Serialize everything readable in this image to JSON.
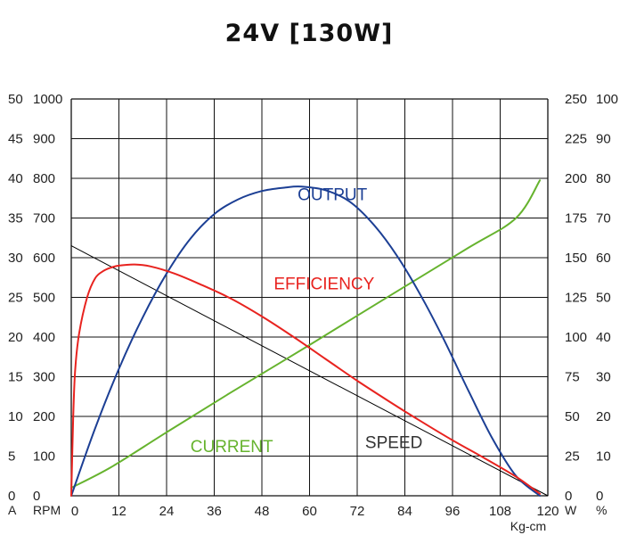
{
  "chart_data": {
    "type": "line",
    "title": "24V [130W]",
    "xlabel": "Kg-cm",
    "x_ticks": [
      "0",
      "12",
      "24",
      "36",
      "48",
      "60",
      "72",
      "84",
      "96",
      "108",
      "120"
    ],
    "xlim": [
      0,
      120
    ],
    "ylim_rpm": [
      0,
      1000
    ],
    "grid": true,
    "left_axes": {
      "current_unit": "A",
      "rpm_unit": "RPM",
      "current_ticks": [
        "0",
        "5",
        "10",
        "15",
        "20",
        "25",
        "30",
        "35",
        "40",
        "45",
        "50"
      ],
      "rpm_ticks": [
        "0",
        "100",
        "200",
        "300",
        "400",
        "500",
        "600",
        "700",
        "800",
        "900",
        "1000"
      ]
    },
    "right_axes": {
      "watt_unit": "W",
      "pct_unit": "%",
      "watt_ticks": [
        "0",
        "25",
        "50",
        "75",
        "100",
        "125",
        "150",
        "175",
        "200",
        "225",
        "250"
      ],
      "pct_ticks": [
        "0",
        "10",
        "20",
        "30",
        "40",
        "50",
        "60",
        "70",
        "80",
        "90",
        "100"
      ]
    },
    "series": [
      {
        "name": "SPEED",
        "color": "#000000",
        "label_at": [
          74,
          120
        ],
        "points": [
          [
            0,
            630
          ],
          [
            120,
            0
          ]
        ]
      },
      {
        "name": "CURRENT",
        "color": "#66b32e",
        "label_at": [
          30,
          110
        ],
        "points": [
          [
            0,
            20
          ],
          [
            10,
            72
          ],
          [
            24,
            160
          ],
          [
            40,
            259
          ],
          [
            60,
            380
          ],
          [
            80,
            503
          ],
          [
            100,
            625
          ],
          [
            112,
            700
          ],
          [
            118,
            795
          ]
        ]
      },
      {
        "name": "OUTPUT",
        "color": "#1c3f94",
        "label_at": [
          57,
          745
        ],
        "points": [
          [
            0,
            0
          ],
          [
            6,
            170
          ],
          [
            12,
            320
          ],
          [
            18,
            450
          ],
          [
            24,
            560
          ],
          [
            30,
            648
          ],
          [
            36,
            710
          ],
          [
            42,
            747
          ],
          [
            48,
            768
          ],
          [
            54,
            777
          ],
          [
            58,
            779
          ],
          [
            64,
            770
          ],
          [
            70,
            742
          ],
          [
            76,
            685
          ],
          [
            82,
            605
          ],
          [
            88,
            505
          ],
          [
            94,
            390
          ],
          [
            100,
            265
          ],
          [
            106,
            145
          ],
          [
            112,
            50
          ],
          [
            118,
            0
          ]
        ]
      },
      {
        "name": "EFFICIENCY",
        "color": "#e8231f",
        "label_at": [
          51,
          520
        ],
        "points": [
          [
            0,
            0
          ],
          [
            0.5,
            200
          ],
          [
            1,
            320
          ],
          [
            2,
            410
          ],
          [
            4,
            500
          ],
          [
            6,
            548
          ],
          [
            8,
            566
          ],
          [
            10,
            575
          ],
          [
            12,
            580
          ],
          [
            16,
            583
          ],
          [
            20,
            578
          ],
          [
            26,
            560
          ],
          [
            32,
            535
          ],
          [
            40,
            498
          ],
          [
            48,
            452
          ],
          [
            56,
            400
          ],
          [
            64,
            345
          ],
          [
            72,
            290
          ],
          [
            80,
            238
          ],
          [
            88,
            188
          ],
          [
            96,
            140
          ],
          [
            104,
            95
          ],
          [
            112,
            48
          ],
          [
            118,
            5
          ]
        ]
      }
    ]
  }
}
